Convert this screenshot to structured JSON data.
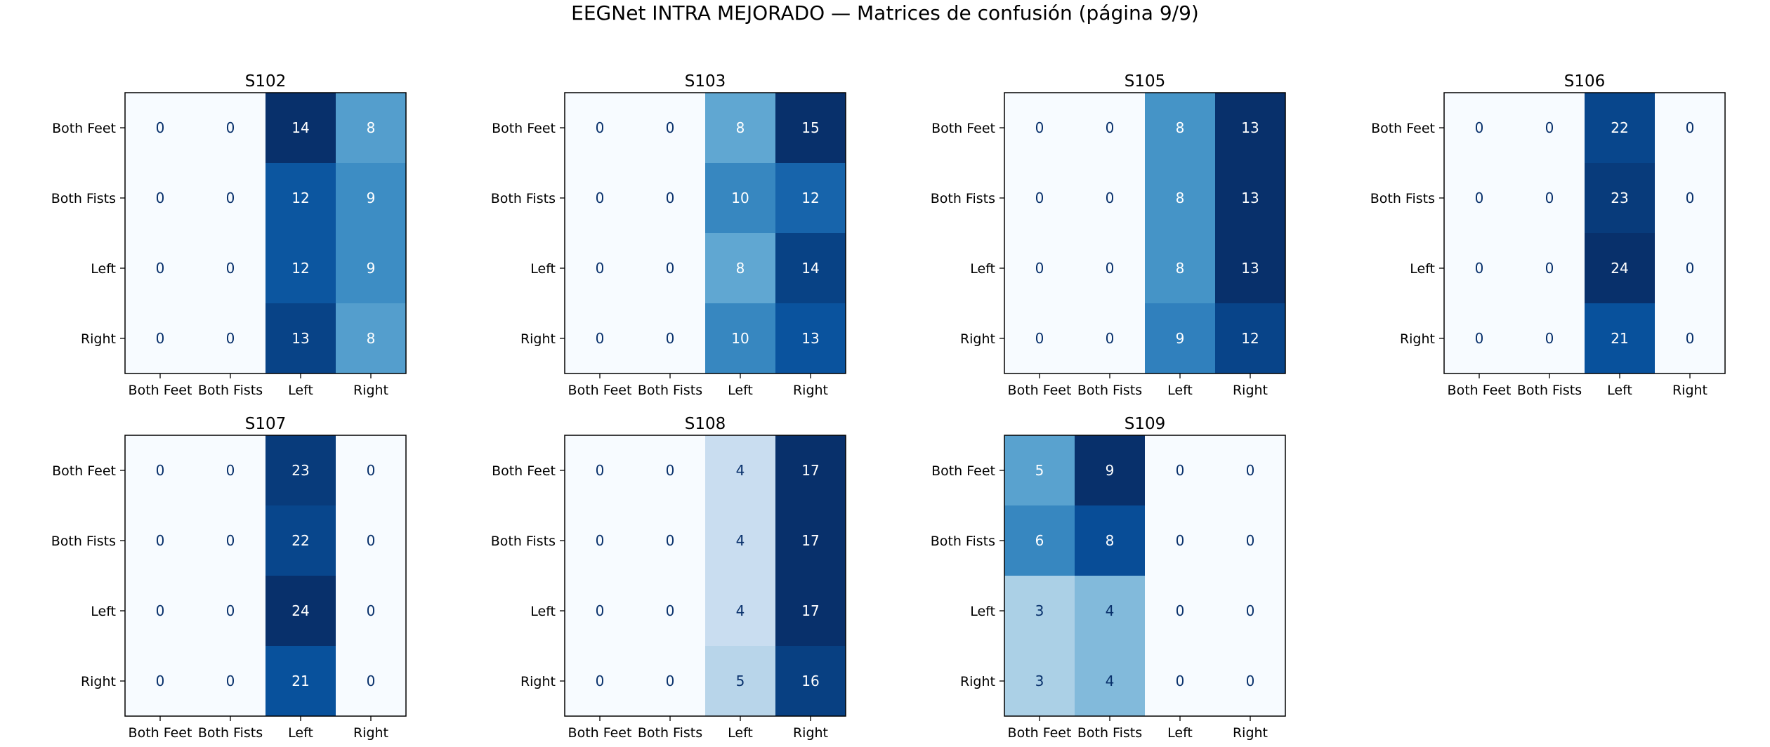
{
  "title": "EEGNet INTRA MEJORADO — Matrices de confusión (página 9/9)",
  "colors": {
    "low": "#f7fbff",
    "high": "#08306b",
    "text_dark": "#08306b",
    "text_light": "#ffffff",
    "frame": "#000000"
  },
  "chart_data": [
    {
      "type": "heatmap",
      "title": "S102",
      "x_categories": [
        "Both Feet",
        "Both Fists",
        "Left",
        "Right"
      ],
      "y_categories": [
        "Both Feet",
        "Both Fists",
        "Left",
        "Right"
      ],
      "values": [
        [
          0,
          0,
          14,
          8
        ],
        [
          0,
          0,
          12,
          9
        ],
        [
          0,
          0,
          12,
          9
        ],
        [
          0,
          0,
          13,
          8
        ]
      ]
    },
    {
      "type": "heatmap",
      "title": "S103",
      "x_categories": [
        "Both Feet",
        "Both Fists",
        "Left",
        "Right"
      ],
      "y_categories": [
        "Both Feet",
        "Both Fists",
        "Left",
        "Right"
      ],
      "values": [
        [
          0,
          0,
          8,
          15
        ],
        [
          0,
          0,
          10,
          12
        ],
        [
          0,
          0,
          8,
          14
        ],
        [
          0,
          0,
          10,
          13
        ]
      ]
    },
    {
      "type": "heatmap",
      "title": "S105",
      "x_categories": [
        "Both Feet",
        "Both Fists",
        "Left",
        "Right"
      ],
      "y_categories": [
        "Both Feet",
        "Both Fists",
        "Left",
        "Right"
      ],
      "values": [
        [
          0,
          0,
          8,
          13
        ],
        [
          0,
          0,
          8,
          13
        ],
        [
          0,
          0,
          8,
          13
        ],
        [
          0,
          0,
          9,
          12
        ]
      ]
    },
    {
      "type": "heatmap",
      "title": "S106",
      "x_categories": [
        "Both Feet",
        "Both Fists",
        "Left",
        "Right"
      ],
      "y_categories": [
        "Both Feet",
        "Both Fists",
        "Left",
        "Right"
      ],
      "values": [
        [
          0,
          0,
          22,
          0
        ],
        [
          0,
          0,
          23,
          0
        ],
        [
          0,
          0,
          24,
          0
        ],
        [
          0,
          0,
          21,
          0
        ]
      ]
    },
    {
      "type": "heatmap",
      "title": "S107",
      "x_categories": [
        "Both Feet",
        "Both Fists",
        "Left",
        "Right"
      ],
      "y_categories": [
        "Both Feet",
        "Both Fists",
        "Left",
        "Right"
      ],
      "values": [
        [
          0,
          0,
          23,
          0
        ],
        [
          0,
          0,
          22,
          0
        ],
        [
          0,
          0,
          24,
          0
        ],
        [
          0,
          0,
          21,
          0
        ]
      ]
    },
    {
      "type": "heatmap",
      "title": "S108",
      "x_categories": [
        "Both Feet",
        "Both Fists",
        "Left",
        "Right"
      ],
      "y_categories": [
        "Both Feet",
        "Both Fists",
        "Left",
        "Right"
      ],
      "values": [
        [
          0,
          0,
          4,
          17
        ],
        [
          0,
          0,
          4,
          17
        ],
        [
          0,
          0,
          4,
          17
        ],
        [
          0,
          0,
          5,
          16
        ]
      ]
    },
    {
      "type": "heatmap",
      "title": "S109",
      "x_categories": [
        "Both Feet",
        "Both Fists",
        "Left",
        "Right"
      ],
      "y_categories": [
        "Both Feet",
        "Both Fists",
        "Left",
        "Right"
      ],
      "values": [
        [
          5,
          9,
          0,
          0
        ],
        [
          6,
          8,
          0,
          0
        ],
        [
          3,
          4,
          0,
          0
        ],
        [
          3,
          4,
          0,
          0
        ]
      ]
    }
  ]
}
